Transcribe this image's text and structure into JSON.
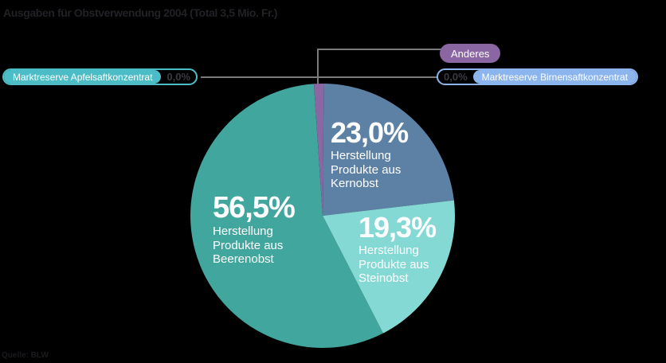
{
  "header": {
    "title": "Ausgaben für Obstverwendung 2004 (Total 3,5 Mio. Fr.)"
  },
  "source": {
    "text": "Quelle: BLW"
  },
  "chart_data": {
    "type": "pie",
    "title": "Ausgaben für Obstverwendung 2004",
    "total": "3,5 Mio. Fr.",
    "slices": [
      {
        "name": "kernobst",
        "label": "Herstellung Produkte aus Kernobst",
        "pct": 23.0,
        "pct_display": "23,0%",
        "color": "#5D81A5"
      },
      {
        "name": "steinobst",
        "label": "Herstellung Produkte aus Steinobst",
        "pct": 19.3,
        "pct_display": "19,3%",
        "color": "#85D9D5"
      },
      {
        "name": "beerenobst",
        "label": "Herstellung Produkte aus Beerenobst",
        "pct": 56.5,
        "pct_display": "56,5%",
        "color": "#41A79E"
      },
      {
        "name": "marktreserve-apfelsaftkonzentrat",
        "label": "Marktreserve Apfelsaftkonzentrat",
        "pct": 0.0,
        "pct_display": "0,0%",
        "color": "#4CBDC6"
      },
      {
        "name": "anderes",
        "label": "Anderes",
        "pct": 1.2,
        "pct_display": "",
        "color": "#8A67A3"
      },
      {
        "name": "marktreserve-birnensaftkonzentrat",
        "label": "Marktreserve Birnensaftkonzentrat",
        "pct": 0.0,
        "pct_display": "0,0%",
        "color": "#8CB5ED"
      }
    ],
    "start_angle_deg": 0.5,
    "center": [
      405,
      271
    ],
    "radius": 166,
    "legend_position": "callouts-top",
    "grid": false
  },
  "inner_labels": {
    "kernobst": {
      "pct": "23,0%",
      "lines": [
        "Herstellung",
        "Produkte aus",
        "Kernobst"
      ]
    },
    "steinobst": {
      "pct": "19,3%",
      "lines": [
        "Herstellung",
        "Produkte aus",
        "Steinobst"
      ]
    },
    "beerenobst": {
      "pct": "56,5%",
      "lines": [
        "Herstellung",
        "Produkte aus",
        "Beerenobst"
      ]
    }
  },
  "callouts": {
    "apfelsaft": {
      "label": "Marktreserve Apfelsaftkonzentrat",
      "pct": "0,0%"
    },
    "anderes": {
      "label": "Anderes"
    },
    "birnensaft": {
      "label": "Marktreserve Birnensaftkonzentrat",
      "pct": "0,0%"
    }
  }
}
